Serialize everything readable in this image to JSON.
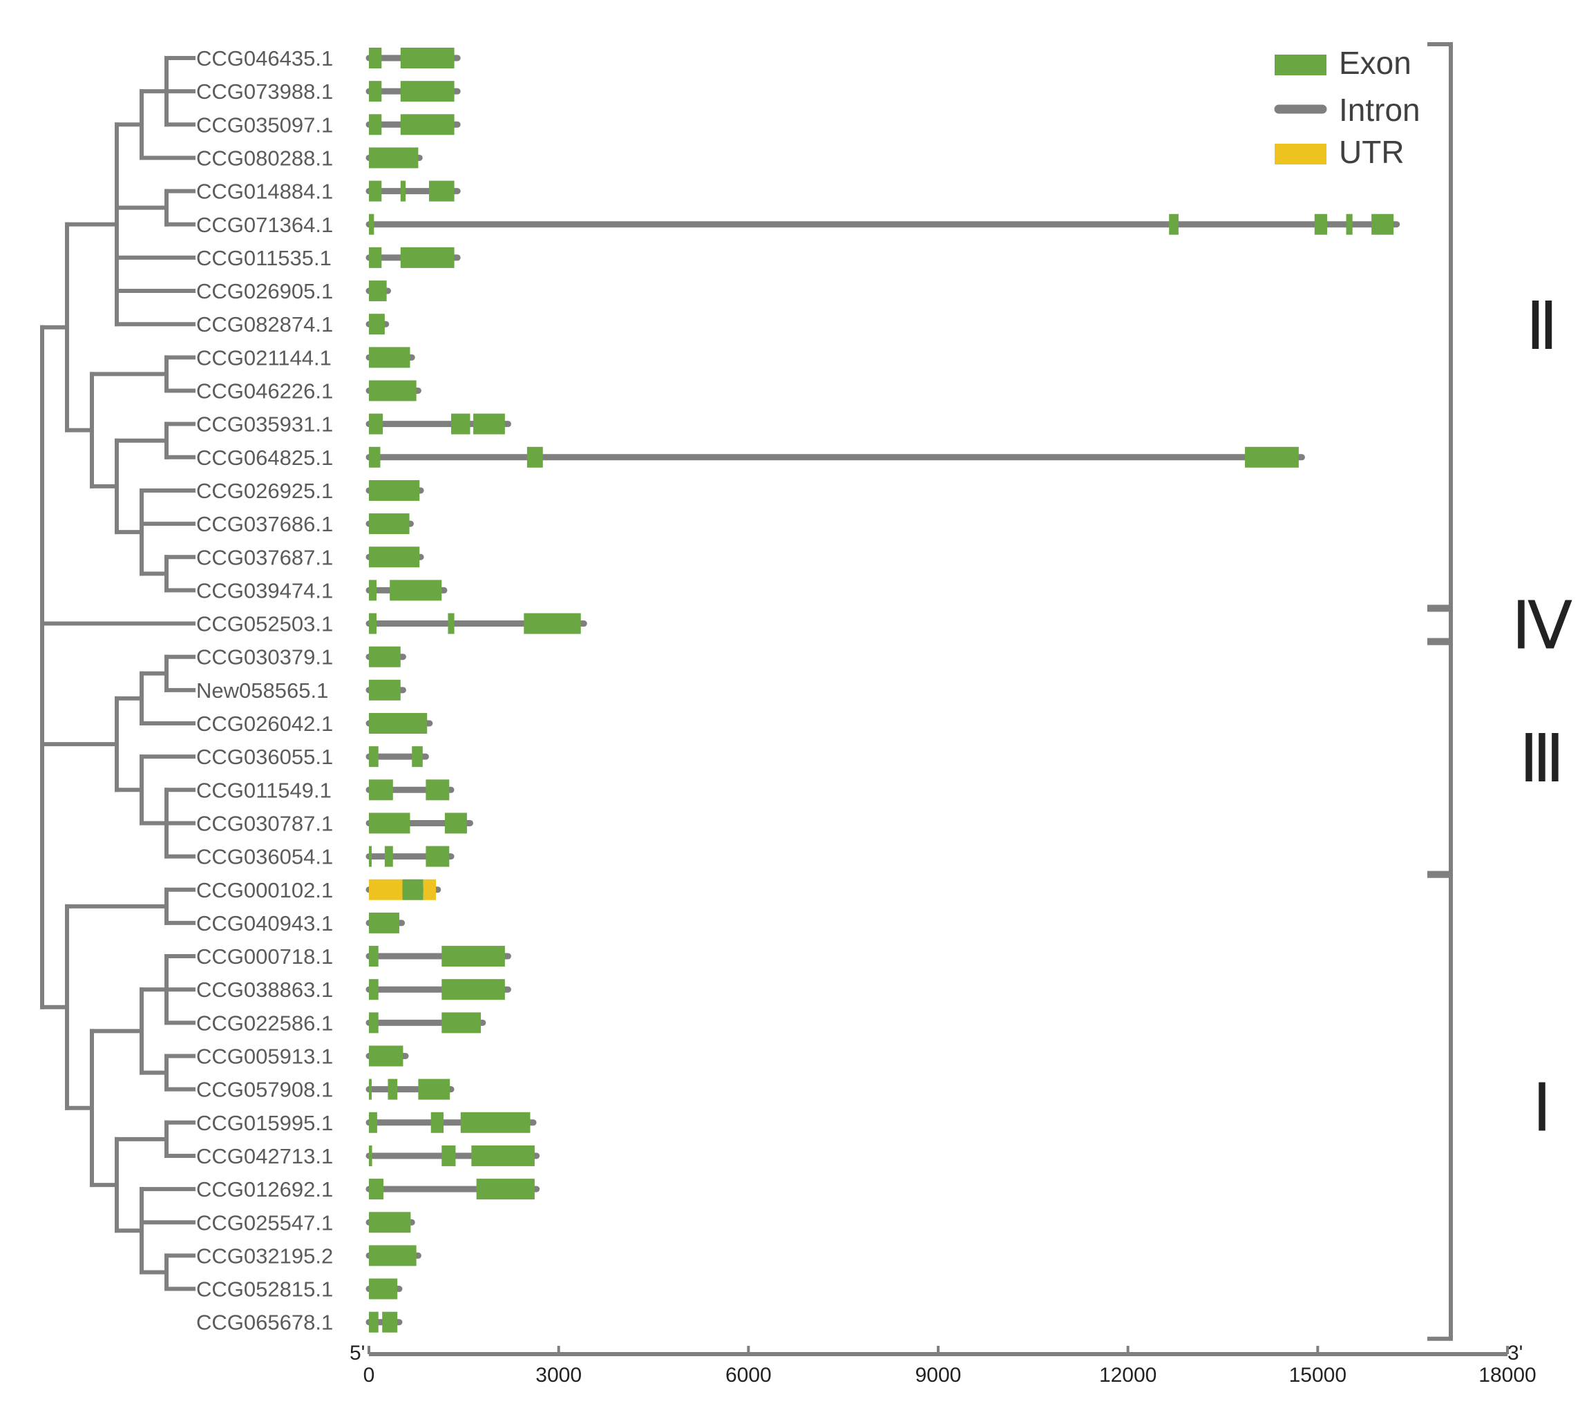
{
  "colors": {
    "exon": "#6aa641",
    "intron": "#7f7f7f",
    "utr": "#efc31f",
    "tree": "#7f7f7f",
    "bracket": "#7f7f7f"
  },
  "legend": {
    "exon": "Exon",
    "intron": "Intron",
    "utr": "UTR"
  },
  "axis": {
    "start_label": "5'",
    "end_label": "3'",
    "ticks": [
      0,
      3000,
      6000,
      9000,
      12000,
      15000,
      18000
    ],
    "tick_labels": [
      "0",
      "3000",
      "6000",
      "9000",
      "12000",
      "15000",
      "18000"
    ],
    "max": 18000
  },
  "groups": [
    {
      "label": "Ⅱ",
      "first": 0,
      "last": 16
    },
    {
      "label": "Ⅳ",
      "first": 17,
      "last": 17
    },
    {
      "label": "Ⅲ",
      "first": 18,
      "last": 24
    },
    {
      "label": "Ⅰ",
      "first": 25,
      "last": 38
    }
  ],
  "tree": {
    "children": [
      {
        "children": [
          {
            "children": [
              {
                "children": [
                  {
                    "children": [
                      {
                        "leaf": 0
                      },
                      {
                        "leaf": 1
                      },
                      {
                        "leaf": 2
                      }
                    ]
                  },
                  {
                    "leaf": 3
                  }
                ]
              },
              {
                "children": [
                  {
                    "leaf": 4
                  },
                  {
                    "leaf": 5
                  }
                ]
              },
              {
                "leaf": 6
              },
              {
                "leaf": 7
              },
              {
                "leaf": 8
              }
            ]
          },
          {
            "children": [
              {
                "children": [
                  {
                    "leaf": 9
                  },
                  {
                    "leaf": 10
                  }
                ]
              },
              {
                "children": [
                  {
                    "children": [
                      {
                        "leaf": 11
                      },
                      {
                        "leaf": 12
                      }
                    ]
                  },
                  {
                    "children": [
                      {
                        "leaf": 13
                      },
                      {
                        "leaf": 14
                      },
                      {
                        "children": [
                          {
                            "leaf": 15
                          },
                          {
                            "leaf": 16
                          }
                        ]
                      }
                    ]
                  }
                ]
              }
            ]
          }
        ]
      },
      {
        "leaf": 17
      },
      {
        "children": [
          {
            "children": [
              {
                "children": [
                  {
                    "leaf": 18
                  },
                  {
                    "leaf": 19
                  }
                ]
              },
              {
                "leaf": 20
              }
            ]
          },
          {
            "children": [
              {
                "leaf": 21
              },
              {
                "children": [
                  {
                    "leaf": 22
                  },
                  {
                    "leaf": 23
                  },
                  {
                    "leaf": 24
                  }
                ]
              }
            ]
          }
        ]
      },
      {
        "children": [
          {
            "children": [
              {
                "leaf": 25
              },
              {
                "leaf": 26
              }
            ]
          },
          {
            "children": [
              {
                "children": [
                  {
                    "children": [
                      {
                        "leaf": 27
                      },
                      {
                        "leaf": 28
                      },
                      {
                        "leaf": 29
                      }
                    ]
                  },
                  {
                    "children": [
                      {
                        "leaf": 30
                      },
                      {
                        "leaf": 31
                      }
                    ]
                  }
                ]
              },
              {
                "children": [
                  {
                    "children": [
                      {
                        "leaf": 32
                      },
                      {
                        "leaf": 33
                      }
                    ]
                  },
                  {
                    "children": [
                      {
                        "leaf": 34
                      },
                      {
                        "leaf": 35
                      },
                      {
                        "children": [
                          {
                            "leaf": 36
                          },
                          {
                            "leaf": 37
                          }
                        ]
                      }
                    ]
                  }
                ]
              }
            ]
          }
        ]
      }
    ]
  },
  "genes": [
    {
      "id": "CCG046435.1",
      "length": 1400,
      "features": [
        {
          "type": "exon",
          "start": 0,
          "end": 200
        },
        {
          "type": "exon",
          "start": 500,
          "end": 1350
        }
      ]
    },
    {
      "id": "CCG073988.1",
      "length": 1400,
      "features": [
        {
          "type": "exon",
          "start": 0,
          "end": 200
        },
        {
          "type": "exon",
          "start": 500,
          "end": 1350
        }
      ]
    },
    {
      "id": "CCG035097.1",
      "length": 1400,
      "features": [
        {
          "type": "exon",
          "start": 0,
          "end": 200
        },
        {
          "type": "exon",
          "start": 500,
          "end": 1350
        }
      ]
    },
    {
      "id": "CCG080288.1",
      "length": 800,
      "features": [
        {
          "type": "exon",
          "start": 0,
          "end": 780
        }
      ]
    },
    {
      "id": "CCG014884.1",
      "length": 1400,
      "features": [
        {
          "type": "exon",
          "start": 0,
          "end": 200
        },
        {
          "type": "exon",
          "start": 500,
          "end": 580
        },
        {
          "type": "exon",
          "start": 950,
          "end": 1350
        }
      ]
    },
    {
      "id": "CCG071364.1",
      "length": 16250,
      "features": [
        {
          "type": "exon",
          "start": 0,
          "end": 80
        },
        {
          "type": "exon",
          "start": 12650,
          "end": 12800
        },
        {
          "type": "exon",
          "start": 14950,
          "end": 15150
        },
        {
          "type": "exon",
          "start": 15450,
          "end": 15550
        },
        {
          "type": "exon",
          "start": 15850,
          "end": 16200
        }
      ]
    },
    {
      "id": "CCG011535.1",
      "length": 1400,
      "features": [
        {
          "type": "exon",
          "start": 0,
          "end": 200
        },
        {
          "type": "exon",
          "start": 500,
          "end": 1350
        }
      ]
    },
    {
      "id": "CCG026905.1",
      "length": 300,
      "features": [
        {
          "type": "exon",
          "start": 0,
          "end": 280
        }
      ]
    },
    {
      "id": "CCG082874.1",
      "length": 270,
      "features": [
        {
          "type": "exon",
          "start": 0,
          "end": 250
        }
      ]
    },
    {
      "id": "CCG021144.1",
      "length": 680,
      "features": [
        {
          "type": "exon",
          "start": 0,
          "end": 650
        }
      ]
    },
    {
      "id": "CCG046226.1",
      "length": 780,
      "features": [
        {
          "type": "exon",
          "start": 0,
          "end": 750
        }
      ]
    },
    {
      "id": "CCG035931.1",
      "length": 2200,
      "features": [
        {
          "type": "exon",
          "start": 0,
          "end": 220
        },
        {
          "type": "exon",
          "start": 1300,
          "end": 1600
        },
        {
          "type": "exon",
          "start": 1650,
          "end": 2150
        }
      ]
    },
    {
      "id": "CCG064825.1",
      "length": 14750,
      "features": [
        {
          "type": "exon",
          "start": 0,
          "end": 180
        },
        {
          "type": "exon",
          "start": 2500,
          "end": 2750
        },
        {
          "type": "exon",
          "start": 13850,
          "end": 14700
        }
      ]
    },
    {
      "id": "CCG026925.1",
      "length": 820,
      "features": [
        {
          "type": "exon",
          "start": 0,
          "end": 800
        }
      ]
    },
    {
      "id": "CCG037686.1",
      "length": 660,
      "features": [
        {
          "type": "exon",
          "start": 0,
          "end": 640
        }
      ]
    },
    {
      "id": "CCG037687.1",
      "length": 820,
      "features": [
        {
          "type": "exon",
          "start": 0,
          "end": 800
        }
      ]
    },
    {
      "id": "CCG039474.1",
      "length": 1190,
      "features": [
        {
          "type": "exon",
          "start": 0,
          "end": 120
        },
        {
          "type": "exon",
          "start": 330,
          "end": 1150
        }
      ]
    },
    {
      "id": "CCG052503.1",
      "length": 3400,
      "features": [
        {
          "type": "exon",
          "start": 0,
          "end": 120
        },
        {
          "type": "exon",
          "start": 1250,
          "end": 1350
        },
        {
          "type": "exon",
          "start": 2450,
          "end": 3350
        }
      ]
    },
    {
      "id": "CCG030379.1",
      "length": 540,
      "features": [
        {
          "type": "exon",
          "start": 0,
          "end": 500
        }
      ]
    },
    {
      "id": "New058565.1",
      "length": 540,
      "features": [
        {
          "type": "exon",
          "start": 0,
          "end": 500
        }
      ]
    },
    {
      "id": "CCG026042.1",
      "length": 960,
      "features": [
        {
          "type": "exon",
          "start": 0,
          "end": 920
        }
      ]
    },
    {
      "id": "CCG036055.1",
      "length": 900,
      "features": [
        {
          "type": "exon",
          "start": 0,
          "end": 150
        },
        {
          "type": "exon",
          "start": 680,
          "end": 850
        }
      ]
    },
    {
      "id": "CCG011549.1",
      "length": 1300,
      "features": [
        {
          "type": "exon",
          "start": 0,
          "end": 380
        },
        {
          "type": "exon",
          "start": 900,
          "end": 1270
        }
      ]
    },
    {
      "id": "CCG030787.1",
      "length": 1600,
      "features": [
        {
          "type": "exon",
          "start": 0,
          "end": 650
        },
        {
          "type": "exon",
          "start": 1200,
          "end": 1550
        }
      ]
    },
    {
      "id": "CCG036054.1",
      "length": 1300,
      "features": [
        {
          "type": "exon",
          "start": 0,
          "end": 30
        },
        {
          "type": "exon",
          "start": 250,
          "end": 380
        },
        {
          "type": "exon",
          "start": 900,
          "end": 1270
        }
      ]
    },
    {
      "id": "CCG000102.1",
      "length": 1090,
      "features": [
        {
          "type": "utr",
          "start": 0,
          "end": 530
        },
        {
          "type": "exon",
          "start": 530,
          "end": 860
        },
        {
          "type": "utr",
          "start": 860,
          "end": 1060
        }
      ]
    },
    {
      "id": "CCG040943.1",
      "length": 520,
      "features": [
        {
          "type": "exon",
          "start": 0,
          "end": 480
        }
      ]
    },
    {
      "id": "CCG000718.1",
      "length": 2200,
      "features": [
        {
          "type": "exon",
          "start": 0,
          "end": 150
        },
        {
          "type": "exon",
          "start": 1150,
          "end": 2150
        }
      ]
    },
    {
      "id": "CCG038863.1",
      "length": 2200,
      "features": [
        {
          "type": "exon",
          "start": 0,
          "end": 150
        },
        {
          "type": "exon",
          "start": 1150,
          "end": 2150
        }
      ]
    },
    {
      "id": "CCG022586.1",
      "length": 1800,
      "features": [
        {
          "type": "exon",
          "start": 0,
          "end": 150
        },
        {
          "type": "exon",
          "start": 1150,
          "end": 1770
        }
      ]
    },
    {
      "id": "CCG005913.1",
      "length": 580,
      "features": [
        {
          "type": "exon",
          "start": 0,
          "end": 540
        }
      ]
    },
    {
      "id": "CCG057908.1",
      "length": 1300,
      "features": [
        {
          "type": "exon",
          "start": 0,
          "end": 30
        },
        {
          "type": "exon",
          "start": 300,
          "end": 450
        },
        {
          "type": "exon",
          "start": 780,
          "end": 1280
        }
      ]
    },
    {
      "id": "CCG015995.1",
      "length": 2600,
      "features": [
        {
          "type": "exon",
          "start": 0,
          "end": 130
        },
        {
          "type": "exon",
          "start": 980,
          "end": 1180
        },
        {
          "type": "exon",
          "start": 1450,
          "end": 2550
        }
      ]
    },
    {
      "id": "CCG042713.1",
      "length": 2650,
      "features": [
        {
          "type": "exon",
          "start": 0,
          "end": 50
        },
        {
          "type": "exon",
          "start": 1150,
          "end": 1370
        },
        {
          "type": "exon",
          "start": 1620,
          "end": 2620
        }
      ]
    },
    {
      "id": "CCG012692.1",
      "length": 2650,
      "features": [
        {
          "type": "exon",
          "start": 0,
          "end": 230
        },
        {
          "type": "exon",
          "start": 1700,
          "end": 2620
        }
      ]
    },
    {
      "id": "CCG025547.1",
      "length": 680,
      "features": [
        {
          "type": "exon",
          "start": 0,
          "end": 660
        }
      ]
    },
    {
      "id": "CCG032195.2",
      "length": 780,
      "features": [
        {
          "type": "exon",
          "start": 0,
          "end": 750
        }
      ]
    },
    {
      "id": "CCG052815.1",
      "length": 480,
      "features": [
        {
          "type": "exon",
          "start": 0,
          "end": 450
        }
      ]
    },
    {
      "id": "CCG065678.1",
      "length": 480,
      "features": [
        {
          "type": "exon",
          "start": 0,
          "end": 150
        },
        {
          "type": "exon",
          "start": 210,
          "end": 450
        }
      ]
    }
  ]
}
